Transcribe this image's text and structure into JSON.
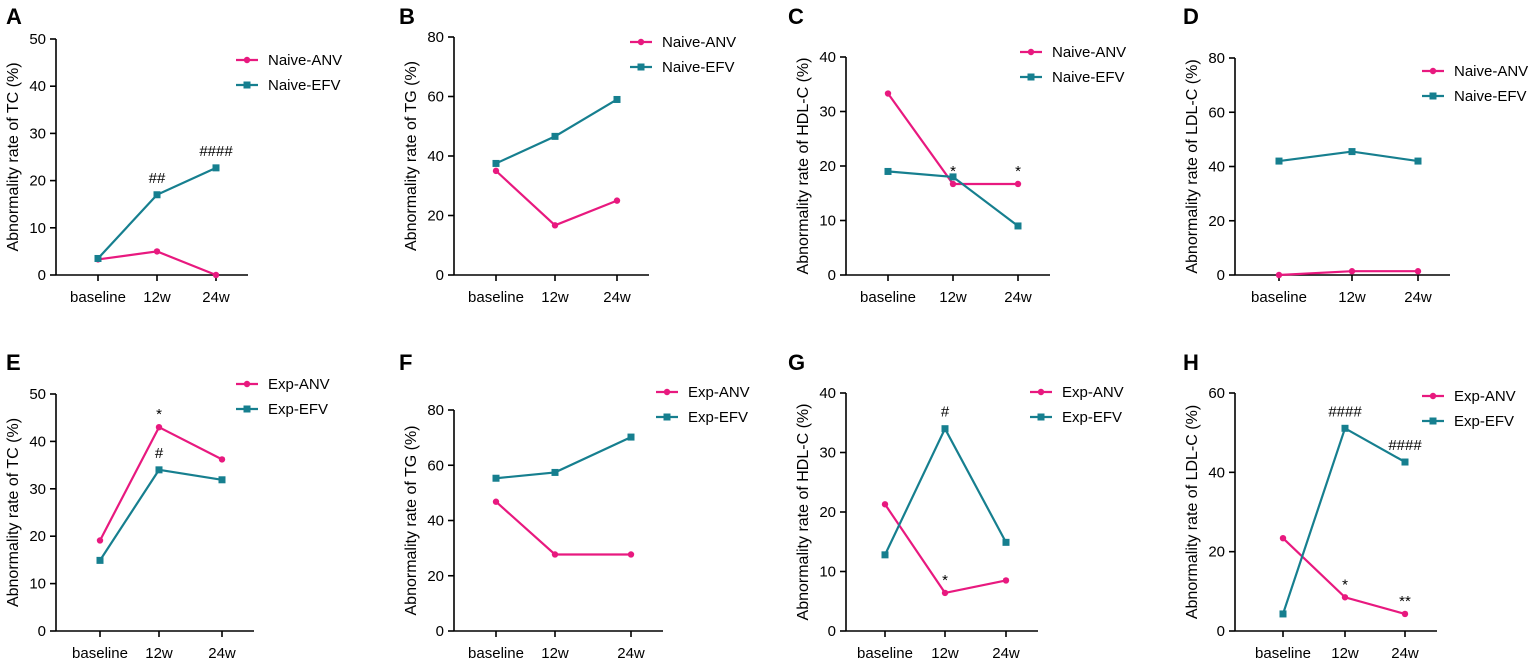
{
  "figure": {
    "colors": {
      "anv": "#e8197f",
      "efv": "#167f8f",
      "axis": "#000000"
    }
  },
  "chart_data": [
    {
      "panel": "A",
      "type": "line",
      "ylabel": "Abnormality rate of TC (%)",
      "categories": [
        "baseline",
        "12w",
        "24w"
      ],
      "ylim": [
        0,
        50
      ],
      "yticks": [
        "0",
        "10",
        "20",
        "30",
        "40",
        "50"
      ],
      "series": [
        {
          "name": "Naive-ANV",
          "color": "#e8197f",
          "marker": "circle",
          "values": [
            3.3,
            5.0,
            0.0
          ],
          "annotations": [
            "",
            "",
            ""
          ]
        },
        {
          "name": "Naive-EFV",
          "color": "#167f8f",
          "marker": "square",
          "values": [
            3.5,
            17.0,
            22.7
          ],
          "annotations": [
            "",
            "##",
            "####"
          ]
        }
      ]
    },
    {
      "panel": "B",
      "type": "line",
      "ylabel": "Abnormality rate of TG (%)",
      "categories": [
        "baseline",
        "12w",
        "24w"
      ],
      "ylim": [
        0,
        80
      ],
      "yticks": [
        "0",
        "20",
        "40",
        "60",
        "80"
      ],
      "series": [
        {
          "name": "Naive-ANV",
          "color": "#e8197f",
          "marker": "circle",
          "values": [
            35.0,
            16.7,
            25.0
          ],
          "annotations": [
            "",
            "",
            ""
          ]
        },
        {
          "name": "Naive-EFV",
          "color": "#167f8f",
          "marker": "square",
          "values": [
            37.5,
            46.6,
            59.0
          ],
          "annotations": [
            "",
            "",
            ""
          ]
        }
      ]
    },
    {
      "panel": "C",
      "type": "line",
      "ylabel": "Abnormality rate of HDL-C (%)",
      "categories": [
        "baseline",
        "12w",
        "24w"
      ],
      "ylim": [
        0,
        40
      ],
      "yticks": [
        "0",
        "10",
        "20",
        "30",
        "40"
      ],
      "series": [
        {
          "name": "Naive-ANV",
          "color": "#e8197f",
          "marker": "circle",
          "values": [
            33.3,
            16.7,
            16.7
          ],
          "annotations": [
            "",
            "*",
            "*"
          ]
        },
        {
          "name": "Naive-EFV",
          "color": "#167f8f",
          "marker": "square",
          "values": [
            19.0,
            18.0,
            9.0
          ],
          "annotations": [
            "",
            "",
            ""
          ]
        }
      ]
    },
    {
      "panel": "D",
      "type": "line",
      "ylabel": "Abnormality rate of LDL-C (%)",
      "categories": [
        "baseline",
        "12w",
        "24w"
      ],
      "ylim": [
        0,
        80
      ],
      "yticks": [
        "0",
        "20",
        "40",
        "60",
        "80"
      ],
      "series": [
        {
          "name": "Naive-ANV",
          "color": "#e8197f",
          "marker": "circle",
          "values": [
            0.0,
            1.4,
            1.4
          ],
          "annotations": [
            "",
            "",
            ""
          ]
        },
        {
          "name": "Naive-EFV",
          "color": "#167f8f",
          "marker": "square",
          "values": [
            42.0,
            45.5,
            42.0
          ],
          "annotations": [
            "",
            "",
            ""
          ]
        }
      ]
    },
    {
      "panel": "E",
      "type": "line",
      "ylabel": "Abnormality rate of TC (%)",
      "categories": [
        "baseline",
        "12w",
        "24w"
      ],
      "ylim": [
        0,
        50
      ],
      "yticks": [
        "0",
        "10",
        "20",
        "30",
        "40",
        "50"
      ],
      "series": [
        {
          "name": "Exp-ANV",
          "color": "#e8197f",
          "marker": "circle",
          "values": [
            19.1,
            43.0,
            36.2
          ],
          "annotations": [
            "",
            "*",
            ""
          ]
        },
        {
          "name": "Exp-EFV",
          "color": "#167f8f",
          "marker": "square",
          "values": [
            14.9,
            34.0,
            31.9
          ],
          "annotations": [
            "",
            "#",
            ""
          ]
        }
      ]
    },
    {
      "panel": "F",
      "type": "line",
      "ylabel": "Abnormality rate of TG (%)",
      "categories": [
        "baseline",
        "12w",
        "24w"
      ],
      "ylim": [
        0,
        80
      ],
      "yticks": [
        "0",
        "20",
        "40",
        "60",
        "80"
      ],
      "series": [
        {
          "name": "Exp-ANV",
          "color": "#e8197f",
          "marker": "circle",
          "values": [
            46.8,
            27.7,
            27.7
          ],
          "annotations": [
            "",
            "",
            ""
          ]
        },
        {
          "name": "Exp-EFV",
          "color": "#167f8f",
          "marker": "square",
          "values": [
            55.3,
            57.4,
            70.2
          ],
          "annotations": [
            "",
            "",
            ""
          ]
        }
      ]
    },
    {
      "panel": "G",
      "type": "line",
      "ylabel": "Abnormality rate of HDL-C (%)",
      "categories": [
        "baseline",
        "12w",
        "24w"
      ],
      "ylim": [
        0,
        40
      ],
      "yticks": [
        "0",
        "10",
        "20",
        "30",
        "40"
      ],
      "series": [
        {
          "name": "Exp-ANV",
          "color": "#e8197f",
          "marker": "circle",
          "values": [
            21.3,
            6.4,
            8.5
          ],
          "annotations": [
            "",
            "*",
            ""
          ]
        },
        {
          "name": "Exp-EFV",
          "color": "#167f8f",
          "marker": "square",
          "values": [
            12.8,
            34.0,
            14.9
          ],
          "annotations": [
            "",
            "#",
            ""
          ]
        }
      ]
    },
    {
      "panel": "H",
      "type": "line",
      "ylabel": "Abnormality rate of LDL-C (%)",
      "categories": [
        "baseline",
        "12w",
        "24w"
      ],
      "ylim": [
        0,
        60
      ],
      "yticks": [
        "0",
        "20",
        "40",
        "60"
      ],
      "series": [
        {
          "name": "Exp-ANV",
          "color": "#e8197f",
          "marker": "circle",
          "values": [
            23.4,
            8.5,
            4.3
          ],
          "annotations": [
            "",
            "*",
            "**"
          ]
        },
        {
          "name": "Exp-EFV",
          "color": "#167f8f",
          "marker": "square",
          "values": [
            4.3,
            51.1,
            42.6
          ],
          "annotations": [
            "",
            "####",
            "####"
          ]
        }
      ]
    }
  ]
}
